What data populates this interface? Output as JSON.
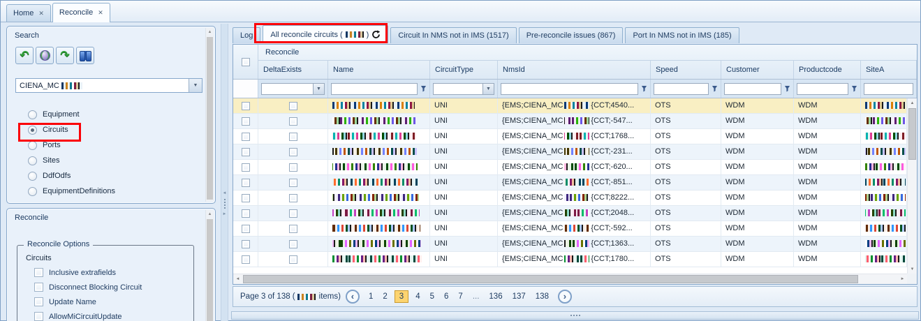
{
  "icons": {
    "close": "✕",
    "dropdown": "▼",
    "undo": "↶",
    "redo": "↷",
    "scroll_up": "▲",
    "scroll_down": "▼",
    "scroll_left": "◄",
    "scroll_right": "►",
    "splitter_left": "◄",
    "splitter_right": "►",
    "prev": "‹",
    "next": "›"
  },
  "colors": {
    "annotation_red": "#fb0007",
    "selected_row": "#f9efc3",
    "current_page_bg": "#fcd470",
    "panel_border": "#86a7cb"
  },
  "window": {
    "tabs": [
      {
        "label": "Home"
      },
      {
        "label": "Reconcile",
        "active": true
      }
    ]
  },
  "sidebar": {
    "search": {
      "title": "Search",
      "toolbar_icons": [
        "undo-arrow-icon",
        "globe-refresh-icon",
        "redo-arrow-icon",
        "binoculars-find-icon"
      ],
      "combo_value_prefix": "CIENA_MC",
      "combo_value_redacted": true,
      "radios": [
        {
          "label": "Equipment",
          "selected": false
        },
        {
          "label": "Circuits",
          "selected": true,
          "annotated": true
        },
        {
          "label": "Ports",
          "selected": false
        },
        {
          "label": "Sites",
          "selected": false
        },
        {
          "label": "DdfOdfs",
          "selected": false
        },
        {
          "label": "EquipmentDefinitions",
          "selected": false
        }
      ]
    },
    "reconcile": {
      "title": "Reconcile",
      "options_legend": "Reconcile Options",
      "section_label": "Circuits",
      "checkboxes": [
        {
          "label": "Inclusive extrafields",
          "checked": false
        },
        {
          "label": "Disconnect Blocking Circuit",
          "checked": false
        },
        {
          "label": "Update Name",
          "checked": false
        },
        {
          "label": "AllowMiCircuitUpdate",
          "checked": false
        }
      ]
    }
  },
  "main": {
    "tabs": [
      {
        "label": "Log"
      },
      {
        "prefix": "All reconcile circuits (",
        "count_redacted": true,
        "suffix": ")",
        "active": true,
        "annotated": true,
        "has_refresh_icon": true
      },
      {
        "label": "Circuit In NMS not in IMS (1517)"
      },
      {
        "label": "Pre-reconcile issues (867)"
      },
      {
        "label": "Port In NMS not in IMS (185)"
      }
    ],
    "grid": {
      "band_header": "Reconcile",
      "columns": [
        "DeltaExists",
        "Name",
        "CircuitType",
        "NmsId",
        "Speed",
        "Customer",
        "Productcode",
        "SiteA"
      ],
      "rows": [
        {
          "selected": true,
          "name_redacted": true,
          "circuit_type": "UNI",
          "nmsid_prefix": "{EMS;CIENA_MC",
          "nmsid_redacted": true,
          "nmsid_suffix": "{CCT;4540...",
          "speed": "OTS",
          "customer": "WDM",
          "productcode": "WDM",
          "sitea_redacted": true
        },
        {
          "selected": false,
          "name_redacted": true,
          "circuit_type": "UNI",
          "nmsid_prefix": "{EMS;CIENA_MC",
          "nmsid_redacted": true,
          "nmsid_suffix": "{CCT;-547...",
          "speed": "OTS",
          "customer": "WDM",
          "productcode": "WDM",
          "sitea_redacted": true
        },
        {
          "selected": false,
          "name_redacted": true,
          "circuit_type": "UNI",
          "nmsid_prefix": "{EMS;CIENA_MC",
          "nmsid_redacted": true,
          "nmsid_suffix": "{CCT;1768...",
          "speed": "OTS",
          "customer": "WDM",
          "productcode": "WDM",
          "sitea_redacted": true
        },
        {
          "selected": false,
          "name_redacted": true,
          "circuit_type": "UNI",
          "nmsid_prefix": "{EMS;CIENA_MC",
          "nmsid_redacted": true,
          "nmsid_suffix": "{CCT;-231...",
          "speed": "OTS",
          "customer": "WDM",
          "productcode": "WDM",
          "sitea_redacted": true
        },
        {
          "selected": false,
          "name_redacted": true,
          "circuit_type": "UNI",
          "nmsid_prefix": "{EMS;CIENA_MC",
          "nmsid_redacted": true,
          "nmsid_suffix": "{CCT;-620...",
          "speed": "OTS",
          "customer": "WDM",
          "productcode": "WDM",
          "sitea_redacted": true
        },
        {
          "selected": false,
          "name_redacted": true,
          "circuit_type": "UNI",
          "nmsid_prefix": "{EMS;CIENA_MC",
          "nmsid_redacted": true,
          "nmsid_suffix": "{CCT;-851...",
          "speed": "OTS",
          "customer": "WDM",
          "productcode": "WDM",
          "sitea_redacted": true
        },
        {
          "selected": false,
          "name_redacted": true,
          "circuit_type": "UNI",
          "nmsid_prefix": "{EMS;CIENA_MC",
          "nmsid_redacted": true,
          "nmsid_suffix": "{CCT;8222...",
          "speed": "OTS",
          "customer": "WDM",
          "productcode": "WDM",
          "sitea_redacted": true
        },
        {
          "selected": false,
          "name_redacted": true,
          "circuit_type": "UNI",
          "nmsid_prefix": "{EMS;CIENA_MC",
          "nmsid_redacted": true,
          "nmsid_suffix": "{CCT;2048...",
          "speed": "OTS",
          "customer": "WDM",
          "productcode": "WDM",
          "sitea_redacted": true
        },
        {
          "selected": false,
          "name_redacted": true,
          "circuit_type": "UNI",
          "nmsid_prefix": "{EMS;CIENA_MC",
          "nmsid_redacted": true,
          "nmsid_suffix": "{CCT;-592...",
          "speed": "OTS",
          "customer": "WDM",
          "productcode": "WDM",
          "sitea_redacted": true
        },
        {
          "selected": false,
          "name_redacted": true,
          "circuit_type": "UNI",
          "nmsid_prefix": "{EMS;CIENA_MC",
          "nmsid_redacted": true,
          "nmsid_suffix": "{CCT;1363...",
          "speed": "OTS",
          "customer": "WDM",
          "productcode": "WDM",
          "sitea_redacted": true
        },
        {
          "selected": false,
          "name_redacted": true,
          "circuit_type": "UNI",
          "nmsid_prefix": "{EMS;CIENA_MC",
          "nmsid_redacted": true,
          "nmsid_suffix": "{CCT;1780...",
          "speed": "OTS",
          "customer": "WDM",
          "productcode": "WDM",
          "sitea_redacted": true
        }
      ]
    },
    "pager": {
      "text_prefix": "Page 3 of 138 (",
      "count_redacted": true,
      "text_suffix": " items)",
      "pages": [
        "1",
        "2",
        "3",
        "4",
        "5",
        "6",
        "7",
        "...",
        "136",
        "137",
        "138"
      ],
      "current": "3"
    }
  }
}
